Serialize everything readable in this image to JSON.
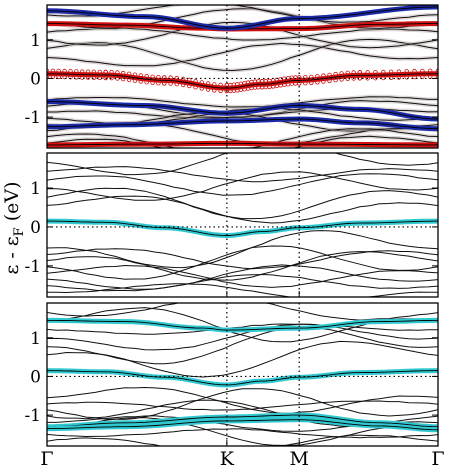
{
  "figure": {
    "ylabel_main": "ε - ε",
    "ylabel_sub": "F",
    "ylabel_unit": "(eV)"
  },
  "chart_data": [
    {
      "type": "line",
      "panel": "top",
      "x_ticks": [
        "Γ",
        "K",
        "M",
        "Γ"
      ],
      "x_tick_positions": [
        0,
        0.46,
        0.645,
        1.0
      ],
      "ylim": [
        -1.8,
        1.9
      ],
      "y_ticks": [
        -1,
        0,
        1
      ],
      "series": [
        {
          "color": "#d01010",
          "style": "thick-circle-markers",
          "points": [
            [
              0,
              0.12
            ],
            [
              0.15,
              0.09
            ],
            [
              0.3,
              -0.05
            ],
            [
              0.46,
              -0.25
            ],
            [
              0.55,
              -0.15
            ],
            [
              0.645,
              -0.05
            ],
            [
              0.8,
              0.08
            ],
            [
              1.0,
              0.12
            ]
          ]
        },
        {
          "color": "#d01010",
          "style": "thick",
          "points": [
            [
              0,
              1.42
            ],
            [
              0.2,
              1.38
            ],
            [
              0.4,
              1.3
            ],
            [
              0.46,
              1.28
            ],
            [
              0.645,
              1.29
            ],
            [
              0.85,
              1.4
            ],
            [
              1.0,
              1.42
            ]
          ]
        },
        {
          "color": "#d01010",
          "style": "thick",
          "points": [
            [
              0,
              -1.72
            ],
            [
              0.25,
              -1.7
            ],
            [
              0.46,
              -1.68
            ],
            [
              0.645,
              -1.7
            ],
            [
              1.0,
              -1.72
            ]
          ]
        },
        {
          "color": "#1a2aa8",
          "style": "thick",
          "points": [
            [
              0,
              1.75
            ],
            [
              0.25,
              1.6
            ],
            [
              0.46,
              1.3
            ],
            [
              0.645,
              1.55
            ],
            [
              1.0,
              1.85
            ]
          ]
        },
        {
          "color": "#1a2aa8",
          "style": "thick",
          "points": [
            [
              0,
              -0.6
            ],
            [
              0.25,
              -0.7
            ],
            [
              0.46,
              -0.9
            ],
            [
              0.645,
              -0.7
            ],
            [
              0.8,
              -0.8
            ],
            [
              1.0,
              -1.05
            ]
          ]
        },
        {
          "color": "#1a2aa8",
          "style": "thick",
          "points": [
            [
              0,
              -1.25
            ],
            [
              0.2,
              -1.2
            ],
            [
              0.46,
              -1.1
            ],
            [
              0.645,
              -1.05
            ],
            [
              0.8,
              -1.15
            ],
            [
              1.0,
              -1.3
            ]
          ]
        }
      ]
    },
    {
      "type": "line",
      "panel": "middle",
      "x_ticks": [
        "Γ",
        "K",
        "M",
        "Γ"
      ],
      "x_tick_positions": [
        0,
        0.46,
        0.645,
        1.0
      ],
      "ylim": [
        -1.8,
        1.9
      ],
      "y_ticks": [
        -1,
        0,
        1
      ],
      "series": [
        {
          "color": "#30c8d0",
          "style": "thick",
          "points": [
            [
              0,
              0.15
            ],
            [
              0.15,
              0.12
            ],
            [
              0.3,
              -0.02
            ],
            [
              0.46,
              -0.22
            ],
            [
              0.55,
              -0.12
            ],
            [
              0.645,
              -0.02
            ],
            [
              0.8,
              0.1
            ],
            [
              1.0,
              0.15
            ]
          ]
        }
      ]
    },
    {
      "type": "line",
      "panel": "bottom",
      "x_ticks": [
        "Γ",
        "K",
        "M",
        "Γ"
      ],
      "x_tick_positions": [
        0,
        0.46,
        0.645,
        1.0
      ],
      "ylim": [
        -1.8,
        1.9
      ],
      "y_ticks": [
        -1,
        0,
        1
      ],
      "series": [
        {
          "color": "#30c8d0",
          "style": "thick",
          "points": [
            [
              0,
              0.15
            ],
            [
              0.15,
              0.12
            ],
            [
              0.3,
              -0.02
            ],
            [
              0.46,
              -0.22
            ],
            [
              0.55,
              -0.12
            ],
            [
              0.645,
              -0.02
            ],
            [
              0.8,
              0.1
            ],
            [
              1.0,
              0.15
            ]
          ]
        },
        {
          "color": "#30c8d0",
          "style": "thick",
          "points": [
            [
              0,
              1.45
            ],
            [
              0.2,
              1.42
            ],
            [
              0.4,
              1.25
            ],
            [
              0.46,
              1.2
            ],
            [
              0.645,
              1.25
            ],
            [
              0.85,
              1.42
            ],
            [
              1.0,
              1.45
            ]
          ]
        },
        {
          "color": "#30c8d0",
          "style": "thick",
          "points": [
            [
              0,
              -1.3
            ],
            [
              0.2,
              -1.2
            ],
            [
              0.46,
              -1.05
            ],
            [
              0.645,
              -1.0
            ],
            [
              0.85,
              -1.2
            ],
            [
              1.0,
              -1.3
            ]
          ]
        },
        {
          "color": "#30c8d0",
          "style": "thick",
          "points": [
            [
              0,
              -1.35
            ],
            [
              0.2,
              -1.3
            ],
            [
              0.46,
              -1.15
            ],
            [
              0.645,
              -1.12
            ],
            [
              0.85,
              -1.28
            ],
            [
              1.0,
              -1.38
            ]
          ]
        }
      ]
    }
  ]
}
